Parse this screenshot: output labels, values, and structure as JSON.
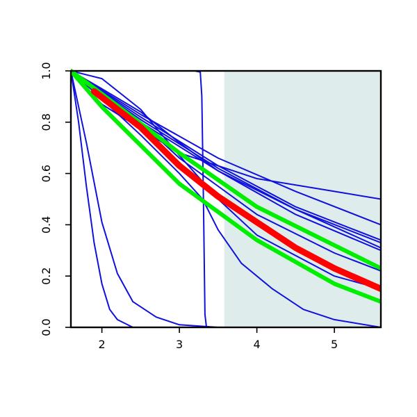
{
  "chart_data": {
    "type": "line",
    "title": "",
    "xlabel": "",
    "ylabel": "",
    "xlim": [
      1.6,
      5.6
    ],
    "ylim": [
      0.0,
      1.0
    ],
    "x_ticks": [
      2,
      3,
      4,
      5
    ],
    "x_tick_labels": [
      "2",
      "3",
      "4",
      "5"
    ],
    "y_ticks": [
      0.0,
      0.2,
      0.4,
      0.6,
      0.8,
      1.0
    ],
    "y_tick_labels": [
      "0.0",
      "0.2",
      "0.4",
      "0.6",
      "0.8",
      "1.0"
    ],
    "grid": false,
    "legend": "none",
    "shaded_region": {
      "x": [
        3.58,
        5.6
      ],
      "color": "#deeceb"
    },
    "colors": {
      "blue": "#1010dd",
      "red": "#ff0000",
      "green": "#00ee00",
      "shade": "#deeceb"
    },
    "series": [
      {
        "color": "#1010dd",
        "width": 2,
        "points": [
          [
            1.6,
            1.0
          ],
          [
            2.0,
            0.87
          ],
          [
            3.0,
            0.68
          ],
          [
            4.0,
            0.58
          ],
          [
            5.0,
            0.53
          ],
          [
            5.6,
            0.5
          ]
        ]
      },
      {
        "color": "#1010dd",
        "width": 2,
        "points": [
          [
            1.6,
            1.0
          ],
          [
            2.5,
            0.83
          ],
          [
            3.5,
            0.66
          ],
          [
            4.5,
            0.53
          ],
          [
            5.6,
            0.4
          ]
        ]
      },
      {
        "color": "#1010dd",
        "width": 2,
        "points": [
          [
            1.6,
            1.0
          ],
          [
            2.5,
            0.82
          ],
          [
            3.5,
            0.63
          ],
          [
            4.5,
            0.47
          ],
          [
            5.6,
            0.34
          ]
        ]
      },
      {
        "color": "#1010dd",
        "width": 2,
        "points": [
          [
            1.6,
            1.0
          ],
          [
            2.5,
            0.8
          ],
          [
            3.5,
            0.61
          ],
          [
            4.5,
            0.46
          ],
          [
            5.6,
            0.33
          ]
        ]
      },
      {
        "color": "#1010dd",
        "width": 2,
        "points": [
          [
            1.6,
            1.0
          ],
          [
            2.5,
            0.81
          ],
          [
            3.5,
            0.62
          ],
          [
            4.5,
            0.46
          ],
          [
            5.6,
            0.31
          ]
        ]
      },
      {
        "color": "#1010dd",
        "width": 2,
        "points": [
          [
            1.6,
            1.0
          ],
          [
            2.0,
            0.93
          ],
          [
            2.5,
            0.84
          ],
          [
            3.0,
            0.72
          ],
          [
            3.5,
            0.61
          ],
          [
            4.5,
            0.44
          ],
          [
            5.6,
            0.3
          ]
        ]
      },
      {
        "color": "#1010dd",
        "width": 2,
        "points": [
          [
            1.6,
            1.0
          ],
          [
            2.0,
            0.97
          ],
          [
            2.5,
            0.85
          ],
          [
            3.0,
            0.67
          ],
          [
            3.5,
            0.5
          ],
          [
            4.0,
            0.36
          ],
          [
            5.0,
            0.2
          ],
          [
            5.6,
            0.15
          ]
        ]
      },
      {
        "color": "#1010dd",
        "width": 2,
        "points": [
          [
            1.6,
            1.0
          ],
          [
            2.0,
            0.92
          ],
          [
            2.5,
            0.8
          ],
          [
            3.0,
            0.66
          ],
          [
            3.5,
            0.55
          ],
          [
            4.0,
            0.44
          ],
          [
            5.0,
            0.29
          ],
          [
            5.6,
            0.22
          ]
        ]
      },
      {
        "color": "#1010dd",
        "width": 2,
        "points": [
          [
            1.6,
            1.0
          ],
          [
            2.0,
            0.89
          ],
          [
            2.5,
            0.75
          ],
          [
            3.0,
            0.6
          ],
          [
            3.3,
            0.5
          ],
          [
            3.5,
            0.38
          ],
          [
            3.8,
            0.25
          ],
          [
            4.2,
            0.15
          ],
          [
            4.6,
            0.07
          ],
          [
            5.0,
            0.03
          ],
          [
            5.6,
            0.0
          ]
        ]
      },
      {
        "color": "#1010dd",
        "width": 2,
        "points": [
          [
            1.6,
            1.0
          ],
          [
            3.2,
            1.0
          ],
          [
            3.27,
            0.995
          ],
          [
            3.29,
            0.9
          ],
          [
            3.31,
            0.5
          ],
          [
            3.33,
            0.05
          ],
          [
            3.35,
            0.0
          ],
          [
            5.6,
            0.0
          ]
        ]
      },
      {
        "color": "#1010dd",
        "width": 2,
        "points": [
          [
            1.6,
            1.0
          ],
          [
            1.8,
            0.72
          ],
          [
            2.0,
            0.41
          ],
          [
            2.2,
            0.21
          ],
          [
            2.4,
            0.1
          ],
          [
            2.7,
            0.04
          ],
          [
            3.0,
            0.01
          ],
          [
            3.5,
            0.0
          ],
          [
            5.6,
            0.0
          ]
        ]
      },
      {
        "color": "#1010dd",
        "width": 2,
        "points": [
          [
            1.6,
            1.0
          ],
          [
            1.7,
            0.8
          ],
          [
            1.8,
            0.55
          ],
          [
            1.9,
            0.33
          ],
          [
            2.0,
            0.17
          ],
          [
            2.1,
            0.07
          ],
          [
            2.2,
            0.03
          ],
          [
            2.4,
            0.0
          ],
          [
            5.6,
            0.0
          ]
        ]
      },
      {
        "color": "#00ee00",
        "width": 6,
        "points": [
          [
            1.6,
            1.0
          ],
          [
            2.0,
            0.91
          ],
          [
            3.0,
            0.68
          ],
          [
            4.0,
            0.47
          ],
          [
            5.0,
            0.32
          ],
          [
            5.6,
            0.23
          ]
        ]
      },
      {
        "color": "#00ee00",
        "width": 6,
        "points": [
          [
            1.6,
            1.0
          ],
          [
            2.0,
            0.86
          ],
          [
            3.0,
            0.56
          ],
          [
            3.5,
            0.45
          ],
          [
            4.0,
            0.34
          ],
          [
            5.0,
            0.17
          ],
          [
            5.6,
            0.1
          ]
        ]
      },
      {
        "color": "#ff0000",
        "width": 9,
        "points": [
          [
            1.9,
            0.92
          ],
          [
            2.5,
            0.78
          ],
          [
            3.0,
            0.63
          ],
          [
            3.5,
            0.51
          ],
          [
            4.0,
            0.41
          ],
          [
            4.5,
            0.31
          ],
          [
            5.0,
            0.23
          ],
          [
            5.6,
            0.15
          ]
        ]
      }
    ]
  }
}
